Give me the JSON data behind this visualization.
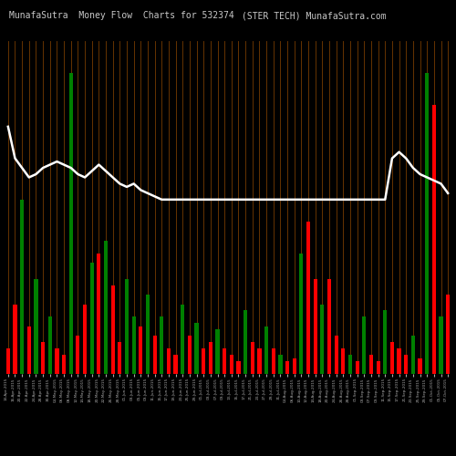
{
  "title_left": "MunafaSutra  Money Flow  Charts for 532374",
  "title_right": "(STER TECH) MunafaSutra.com",
  "background_color": "#000000",
  "bar_colors": [
    "red",
    "red",
    "green",
    "red",
    "green",
    "red",
    "green",
    "red",
    "red",
    "green",
    "red",
    "red",
    "green",
    "red",
    "green",
    "red",
    "red",
    "green",
    "green",
    "red",
    "green",
    "red",
    "green",
    "red",
    "red",
    "green",
    "red",
    "green",
    "red",
    "red",
    "green",
    "red",
    "red",
    "red",
    "green",
    "red",
    "red",
    "green",
    "red",
    "green",
    "red",
    "red",
    "green",
    "red",
    "red",
    "green",
    "red",
    "red",
    "red",
    "green",
    "red",
    "green",
    "red",
    "red",
    "green",
    "red",
    "red",
    "red",
    "green",
    "red",
    "green",
    "red",
    "green",
    "red"
  ],
  "bar_heights": [
    8,
    22,
    55,
    15,
    30,
    10,
    18,
    8,
    6,
    95,
    12,
    22,
    35,
    38,
    42,
    28,
    10,
    30,
    18,
    15,
    25,
    12,
    18,
    8,
    6,
    22,
    12,
    16,
    8,
    10,
    14,
    8,
    6,
    4,
    20,
    10,
    8,
    15,
    8,
    6,
    4,
    5,
    38,
    48,
    30,
    22,
    30,
    12,
    8,
    6,
    4,
    18,
    6,
    4,
    20,
    10,
    8,
    6,
    12,
    5,
    95,
    85,
    18,
    25
  ],
  "line_values": [
    78,
    68,
    65,
    62,
    63,
    65,
    66,
    67,
    66,
    65,
    63,
    62,
    64,
    66,
    64,
    62,
    60,
    59,
    60,
    58,
    57,
    56,
    55,
    55,
    55,
    55,
    55,
    55,
    55,
    55,
    55,
    55,
    55,
    55,
    55,
    55,
    55,
    55,
    55,
    55,
    55,
    55,
    55,
    55,
    55,
    55,
    55,
    55,
    55,
    55,
    55,
    55,
    55,
    55,
    55,
    68,
    70,
    68,
    65,
    63,
    62,
    61,
    60,
    57
  ],
  "n_bars": 64,
  "vertical_line_color": "#8B4500",
  "white_line_color": "#ffffff",
  "title_color": "#c8c8c8",
  "title_fontsize": 7.0,
  "tick_labels": [
    "14-Apr-2015",
    "16-Apr-2015",
    "20-Apr-2015",
    "22-Apr-2015",
    "24-Apr-2015",
    "28-Apr-2015",
    "30-Apr-2015",
    "04-May-2015",
    "06-May-2015",
    "08-May-2015",
    "12-May-2015",
    "14-May-2015",
    "18-May-2015",
    "20-May-2015",
    "22-May-2015",
    "26-May-2015",
    "28-May-2015",
    "01-Jun-2015",
    "03-Jun-2015",
    "05-Jun-2015",
    "09-Jun-2015",
    "11-Jun-2015",
    "15-Jun-2015",
    "17-Jun-2015",
    "19-Jun-2015",
    "23-Jun-2015",
    "25-Jun-2015",
    "29-Jun-2015",
    "01-Jul-2015",
    "03-Jul-2015",
    "07-Jul-2015",
    "09-Jul-2015",
    "13-Jul-2015",
    "15-Jul-2015",
    "17-Jul-2015",
    "21-Jul-2015",
    "23-Jul-2015",
    "27-Jul-2015",
    "29-Jul-2015",
    "31-Jul-2015",
    "04-Aug-2015",
    "06-Aug-2015",
    "10-Aug-2015",
    "12-Aug-2015",
    "14-Aug-2015",
    "18-Aug-2015",
    "20-Aug-2015",
    "24-Aug-2015",
    "26-Aug-2015",
    "28-Aug-2015",
    "01-Sep-2015",
    "03-Sep-2015",
    "07-Sep-2015",
    "09-Sep-2015",
    "11-Sep-2015",
    "15-Sep-2015",
    "17-Sep-2015",
    "21-Sep-2015",
    "23-Sep-2015",
    "25-Sep-2015",
    "29-Sep-2015",
    "01-Oct-2015",
    "05-Oct-2015",
    "07-Oct-2015"
  ]
}
